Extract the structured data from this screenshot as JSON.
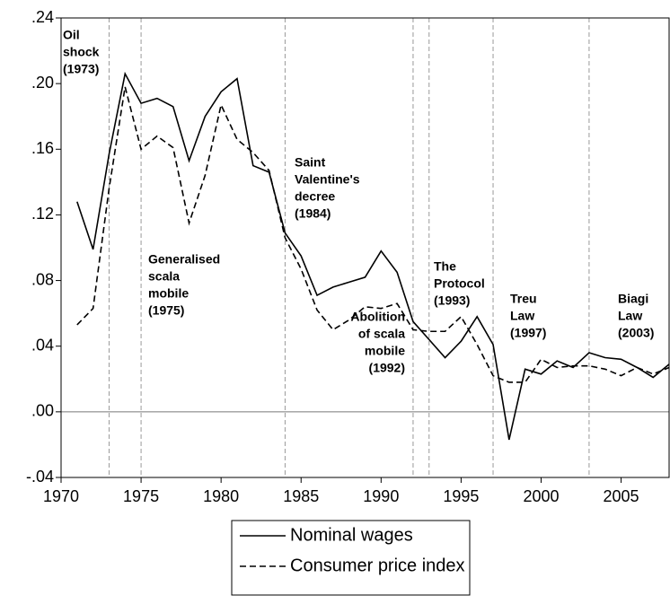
{
  "chart_data": {
    "type": "line",
    "x": [
      1971,
      1972,
      1973,
      1974,
      1975,
      1976,
      1977,
      1978,
      1979,
      1980,
      1981,
      1982,
      1983,
      1984,
      1985,
      1986,
      1987,
      1988,
      1989,
      1990,
      1991,
      1992,
      1993,
      1994,
      1995,
      1996,
      1997,
      1998,
      1999,
      2000,
      2001,
      2002,
      2003,
      2004,
      2005,
      2006,
      2007,
      2008
    ],
    "series": [
      {
        "name": "Nominal wages",
        "color": "#000000",
        "dash": "solid",
        "values": [
          0.128,
          0.099,
          0.157,
          0.206,
          0.188,
          0.191,
          0.186,
          0.153,
          0.18,
          0.195,
          0.203,
          0.15,
          0.146,
          0.109,
          0.095,
          0.071,
          0.076,
          0.079,
          0.082,
          0.098,
          0.085,
          0.055,
          0.044,
          0.033,
          0.043,
          0.058,
          0.041,
          -0.017,
          0.026,
          0.023,
          0.031,
          0.027,
          0.036,
          0.033,
          0.032,
          0.027,
          0.021,
          0.029
        ]
      },
      {
        "name": "Consumer price index",
        "color": "#000000",
        "dash": "dashed",
        "values": [
          0.053,
          0.063,
          0.136,
          0.198,
          0.16,
          0.168,
          0.161,
          0.115,
          0.144,
          0.187,
          0.166,
          0.158,
          0.147,
          0.106,
          0.087,
          0.062,
          0.05,
          0.056,
          0.064,
          0.063,
          0.066,
          0.05,
          0.049,
          0.049,
          0.058,
          0.041,
          0.022,
          0.018,
          0.018,
          0.032,
          0.027,
          0.028,
          0.028,
          0.026,
          0.022,
          0.027,
          0.023,
          0.027
        ]
      }
    ],
    "xlim": [
      1970,
      2008
    ],
    "xticks": [
      1970,
      1975,
      1980,
      1985,
      1990,
      1995,
      2000,
      2005
    ],
    "ylim": [
      -0.04,
      0.24
    ],
    "yticks": [
      {
        "value": -0.04,
        "label": "-.04"
      },
      {
        "value": 0,
        "label": ".00"
      },
      {
        "value": 0.04,
        "label": ".04"
      },
      {
        "value": 0.08,
        "label": ".08"
      },
      {
        "value": 0.12,
        "label": ".12"
      },
      {
        "value": 0.16,
        "label": ".16"
      },
      {
        "value": 0.2,
        "label": ".20"
      },
      {
        "value": 0.24,
        "label": ".24"
      }
    ],
    "zero_line": true,
    "events": [
      1973,
      1975,
      1984,
      1992,
      1993,
      1997,
      2003
    ],
    "annotations": [
      [
        "Oil",
        "shock",
        "(1973)"
      ],
      [
        "Generalised",
        "scala",
        "mobile",
        "(1975)"
      ],
      [
        "Saint",
        "Valentine's",
        "decree",
        "(1984)"
      ],
      [
        "Abolition",
        "of scala",
        "mobile",
        "(1992)"
      ],
      [
        "The",
        "Protocol",
        "(1993)"
      ],
      [
        "Treu",
        "Law",
        "(1997)"
      ],
      [
        "Biagi",
        "Law",
        "(2003)"
      ]
    ],
    "legend": "bottom"
  }
}
